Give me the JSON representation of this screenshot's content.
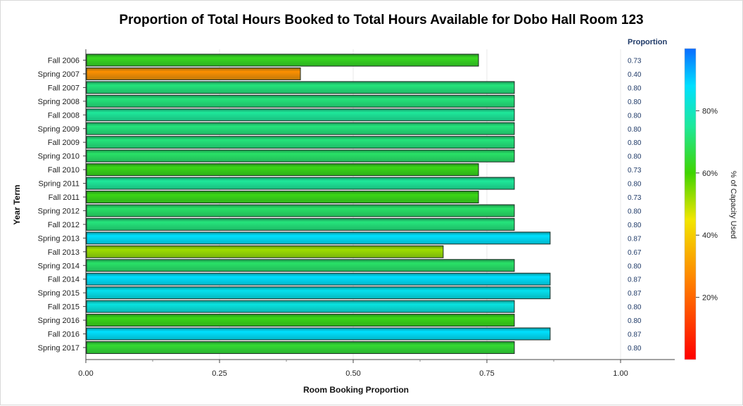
{
  "chart_data": {
    "type": "bar",
    "orientation": "horizontal",
    "title": "Proportion of Total Hours Booked to Total Hours Available for Dobo Hall Room 123",
    "xlabel": "Room Booking Proportion",
    "ylabel": "Year Term",
    "xlim": [
      0,
      1.1
    ],
    "x_ticks": [
      "0.00",
      "0.25",
      "0.50",
      "0.75",
      "1.00"
    ],
    "grid": "vertical",
    "categories": [
      "Fall 2006",
      "Spring 2007",
      "Fall 2007",
      "Spring 2008",
      "Fall 2008",
      "Spring 2009",
      "Fall 2009",
      "Spring 2010",
      "Fall 2010",
      "Spring 2011",
      "Fall 2011",
      "Spring 2012",
      "Fall 2012",
      "Spring 2013",
      "Fall 2013",
      "Spring 2014",
      "Fall 2014",
      "Spring 2015",
      "Fall 2015",
      "Spring 2016",
      "Fall 2016",
      "Spring 2017"
    ],
    "values": [
      0.733,
      0.4,
      0.8,
      0.8,
      0.8,
      0.8,
      0.8,
      0.8,
      0.733,
      0.8,
      0.733,
      0.8,
      0.8,
      0.867,
      0.667,
      0.8,
      0.867,
      0.867,
      0.8,
      0.8,
      0.867,
      0.8
    ],
    "capacity_used_pct": [
      63,
      28,
      72,
      72,
      75,
      72,
      72,
      70,
      62,
      75,
      62,
      70,
      72,
      88,
      52,
      70,
      88,
      86,
      84,
      62,
      88,
      65
    ],
    "proportion_column": {
      "header": "Proportion",
      "labels": [
        "0.73",
        "0.40",
        "0.80",
        "0.80",
        "0.80",
        "0.80",
        "0.80",
        "0.80",
        "0.73",
        "0.80",
        "0.73",
        "0.80",
        "0.80",
        "0.87",
        "0.67",
        "0.80",
        "0.87",
        "0.87",
        "0.80",
        "0.80",
        "0.87",
        "0.80"
      ]
    },
    "color_legend": {
      "label": "% of Capacity Used",
      "ticks": [
        "20%",
        "40%",
        "60%",
        "80%"
      ],
      "tick_values": [
        20,
        40,
        60,
        80
      ],
      "range": [
        0,
        100
      ],
      "stops": [
        {
          "pct": 0,
          "color": "#ff0000"
        },
        {
          "pct": 25,
          "color": "#ff8000"
        },
        {
          "pct": 45,
          "color": "#f2e600"
        },
        {
          "pct": 60,
          "color": "#3fd400"
        },
        {
          "pct": 75,
          "color": "#1ee89a"
        },
        {
          "pct": 88,
          "color": "#00e0ff"
        },
        {
          "pct": 100,
          "color": "#0a6cff"
        }
      ]
    },
    "legend_position": "right"
  }
}
